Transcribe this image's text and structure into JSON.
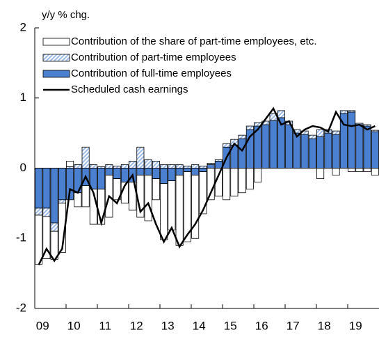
{
  "chart_data": {
    "type": "bar",
    "stacked": true,
    "y_label": "y/y % chg.",
    "categories": [
      "09",
      null,
      null,
      null,
      "10",
      null,
      null,
      null,
      "11",
      null,
      null,
      null,
      "12",
      null,
      null,
      null,
      "13",
      null,
      null,
      null,
      "14",
      null,
      null,
      null,
      "15",
      null,
      null,
      null,
      "16",
      null,
      null,
      null,
      "17",
      null,
      null,
      null,
      "18",
      null,
      null,
      null,
      "19",
      null,
      null,
      null
    ],
    "series": [
      {
        "name": "Contribution of the share of part-time employees, etc.",
        "type": "bar",
        "color": "#ffffff",
        "values": [
          -0.7,
          -0.6,
          -0.4,
          -0.7,
          0.08,
          -0.2,
          -0.3,
          -0.5,
          -0.5,
          -0.6,
          -0.3,
          -0.3,
          -0.4,
          -0.6,
          -0.65,
          -0.3,
          -0.8,
          -0.7,
          -1.0,
          -1.0,
          -0.9,
          -0.6,
          -0.45,
          -0.4,
          -0.45,
          -0.4,
          -0.35,
          -0.3,
          -0.2,
          0,
          0,
          0,
          0,
          0,
          0,
          0,
          -0.15,
          0,
          -0.1,
          0,
          -0.05,
          -0.05,
          -0.05,
          -0.1
        ]
      },
      {
        "name": "Contribution of part-time employees",
        "type": "bar",
        "color": "#9dbbe8",
        "hatch": true,
        "values": [
          -0.1,
          -0.12,
          -0.12,
          -0.05,
          0.02,
          0.05,
          0.3,
          0.05,
          0.02,
          0.05,
          0.03,
          0.05,
          0.1,
          0.3,
          0.12,
          0.1,
          0.05,
          0.05,
          0.05,
          0.03,
          0.05,
          0.03,
          0.02,
          0.02,
          0.05,
          0.08,
          0.05,
          0.05,
          0.05,
          0.05,
          0.1,
          0.1,
          0.05,
          0.05,
          0.05,
          0.05,
          0.1,
          0.05,
          0.05,
          0.04,
          0.02,
          0.02,
          0.02,
          0.02
        ]
      },
      {
        "name": "Contribution of full-time employees",
        "type": "bar",
        "color": "#4a80cf",
        "values": [
          -0.57,
          -0.57,
          -0.78,
          -0.45,
          -0.45,
          -0.35,
          -0.25,
          -0.3,
          -0.3,
          -0.1,
          -0.15,
          -0.2,
          -0.2,
          -0.1,
          -0.1,
          -0.15,
          -0.22,
          -0.18,
          -0.1,
          -0.05,
          -0.1,
          -0.05,
          0.05,
          0.1,
          0.3,
          0.33,
          0.42,
          0.55,
          0.6,
          0.62,
          0.68,
          0.72,
          0.62,
          0.5,
          0.48,
          0.42,
          0.45,
          0.5,
          0.48,
          0.78,
          0.8,
          0.62,
          0.6,
          0.52
        ]
      },
      {
        "name": "Scheduled cash earnings",
        "type": "line",
        "color": "#000000",
        "values": [
          -1.38,
          -1.15,
          -1.32,
          -1.15,
          -0.3,
          -0.35,
          -0.12,
          -0.35,
          -0.78,
          -0.4,
          -0.5,
          -0.25,
          -0.1,
          -0.62,
          -0.5,
          -0.8,
          -1.05,
          -0.85,
          -1.12,
          -0.95,
          -0.8,
          -0.6,
          -0.35,
          -0.1,
          0.15,
          0.35,
          0.25,
          0.45,
          0.55,
          0.7,
          0.85,
          0.62,
          0.67,
          0.45,
          0.55,
          0.6,
          0.58,
          0.52,
          0.8,
          0.62,
          0.6,
          0.62,
          0.55,
          0.6
        ]
      }
    ],
    "ylim": [
      -2,
      2
    ],
    "yticks": [
      -2,
      -1,
      0,
      1,
      2
    ]
  }
}
